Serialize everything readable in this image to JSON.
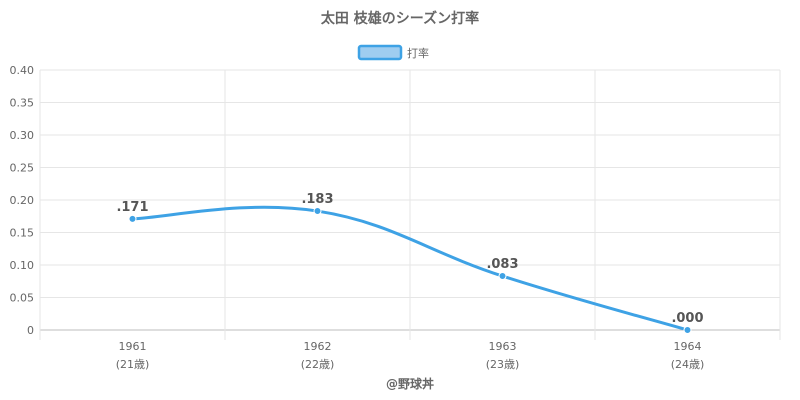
{
  "chart_data": {
    "type": "line",
    "title": "太田 枝雄のシーズン打率",
    "legend": {
      "label": "打率",
      "position": "top"
    },
    "categories": [
      "1961",
      "1962",
      "1963",
      "1964"
    ],
    "category_sublabels": [
      "(21歳)",
      "(22歳)",
      "(23歳)",
      "(24歳)"
    ],
    "series": [
      {
        "name": "打率",
        "values": [
          0.171,
          0.183,
          0.083,
          0.0
        ],
        "labels": [
          ".171",
          ".183",
          ".083",
          ".000"
        ]
      }
    ],
    "ylim": [
      0,
      0.4
    ],
    "yticks": [
      "0",
      "0.05",
      "0.10",
      "0.15",
      "0.20",
      "0.25",
      "0.30",
      "0.35",
      "0.40"
    ],
    "grid": true,
    "colors": {
      "line": "#3ea2e5",
      "legend_fill": "#9fcdf0",
      "grid": "#e6e6e6",
      "axis": "#bdbdbd"
    },
    "footer": "@野球丼"
  }
}
